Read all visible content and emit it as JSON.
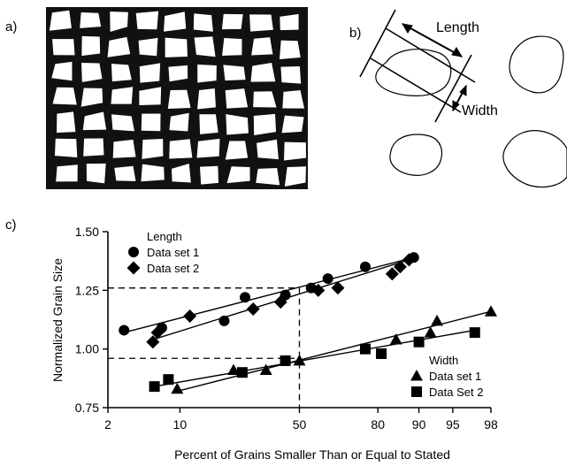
{
  "panels": {
    "a_label": "a)",
    "b_label": "b)",
    "c_label": "c)",
    "b_length_label": "Length",
    "b_width_label": "Width"
  },
  "chart_data": {
    "type": "scatter",
    "xlabel": "Percent of Grains Smaller Than or Equal to Stated",
    "ylabel": "Normalized Grain Size",
    "x_scale": "probability",
    "xlim": [
      2,
      98
    ],
    "ylim": [
      0.75,
      1.5
    ],
    "x_ticks": [
      2,
      10,
      50,
      80,
      90,
      95,
      98
    ],
    "x_tick_labels": [
      "2",
      "10",
      "50",
      "80",
      "90",
      "95",
      "98"
    ],
    "y_ticks": [
      0.75,
      1.0,
      1.25,
      1.5
    ],
    "y_tick_labels": [
      "0.75",
      "1.00",
      "1.25",
      "1.50"
    ],
    "grid": false,
    "legends": [
      {
        "title": "Length",
        "placement": "top-left",
        "entries": [
          {
            "label": "Data set 1",
            "marker": "circle"
          },
          {
            "label": "Data set 2",
            "marker": "diamond"
          }
        ]
      },
      {
        "title": "Width",
        "placement": "bottom-right",
        "entries": [
          {
            "label": "Data set 1",
            "marker": "triangle"
          },
          {
            "label": "Data Set 2",
            "marker": "square"
          }
        ]
      }
    ],
    "series": [
      {
        "name": "Length Data set 1",
        "marker": "circle",
        "x": [
          3,
          7,
          21,
          28,
          44,
          55,
          62,
          76,
          89
        ],
        "y": [
          1.08,
          1.09,
          1.12,
          1.22,
          1.23,
          1.26,
          1.3,
          1.35,
          1.39
        ]
      },
      {
        "name": "Length Data set 2",
        "marker": "diamond",
        "x": [
          5.8,
          6.4,
          12,
          31,
          42,
          58,
          66,
          84,
          86,
          88
        ],
        "y": [
          1.03,
          1.07,
          1.14,
          1.17,
          1.2,
          1.25,
          1.26,
          1.32,
          1.35,
          1.38
        ]
      },
      {
        "name": "Width Data set 1",
        "marker": "triangle",
        "x": [
          9.5,
          24,
          36,
          50,
          85,
          92,
          93,
          98
        ],
        "y": [
          0.83,
          0.91,
          0.91,
          0.95,
          1.04,
          1.07,
          1.12,
          1.16
        ]
      },
      {
        "name": "Width Data Set 2",
        "marker": "square",
        "x": [
          6,
          8,
          27,
          44,
          76,
          81,
          90,
          97
        ],
        "y": [
          0.84,
          0.87,
          0.9,
          0.95,
          1.0,
          0.98,
          1.03,
          1.07
        ]
      }
    ],
    "trend_lines": [
      {
        "series": "Length Data set 1",
        "x": [
          3,
          89
        ],
        "y": [
          1.07,
          1.39
        ]
      },
      {
        "series": "Length Data set 2",
        "x": [
          5.8,
          88
        ],
        "y": [
          1.04,
          1.38
        ]
      },
      {
        "series": "Width Data set 1",
        "x": [
          9.5,
          98
        ],
        "y": [
          0.82,
          1.16
        ]
      },
      {
        "series": "Width Data Set 2",
        "x": [
          6,
          97
        ],
        "y": [
          0.84,
          1.08
        ]
      }
    ],
    "reference_lines": [
      {
        "style": "dashed",
        "x": 50,
        "y": 1.26
      },
      {
        "style": "dashed",
        "x": 50,
        "y": 0.96
      }
    ]
  }
}
